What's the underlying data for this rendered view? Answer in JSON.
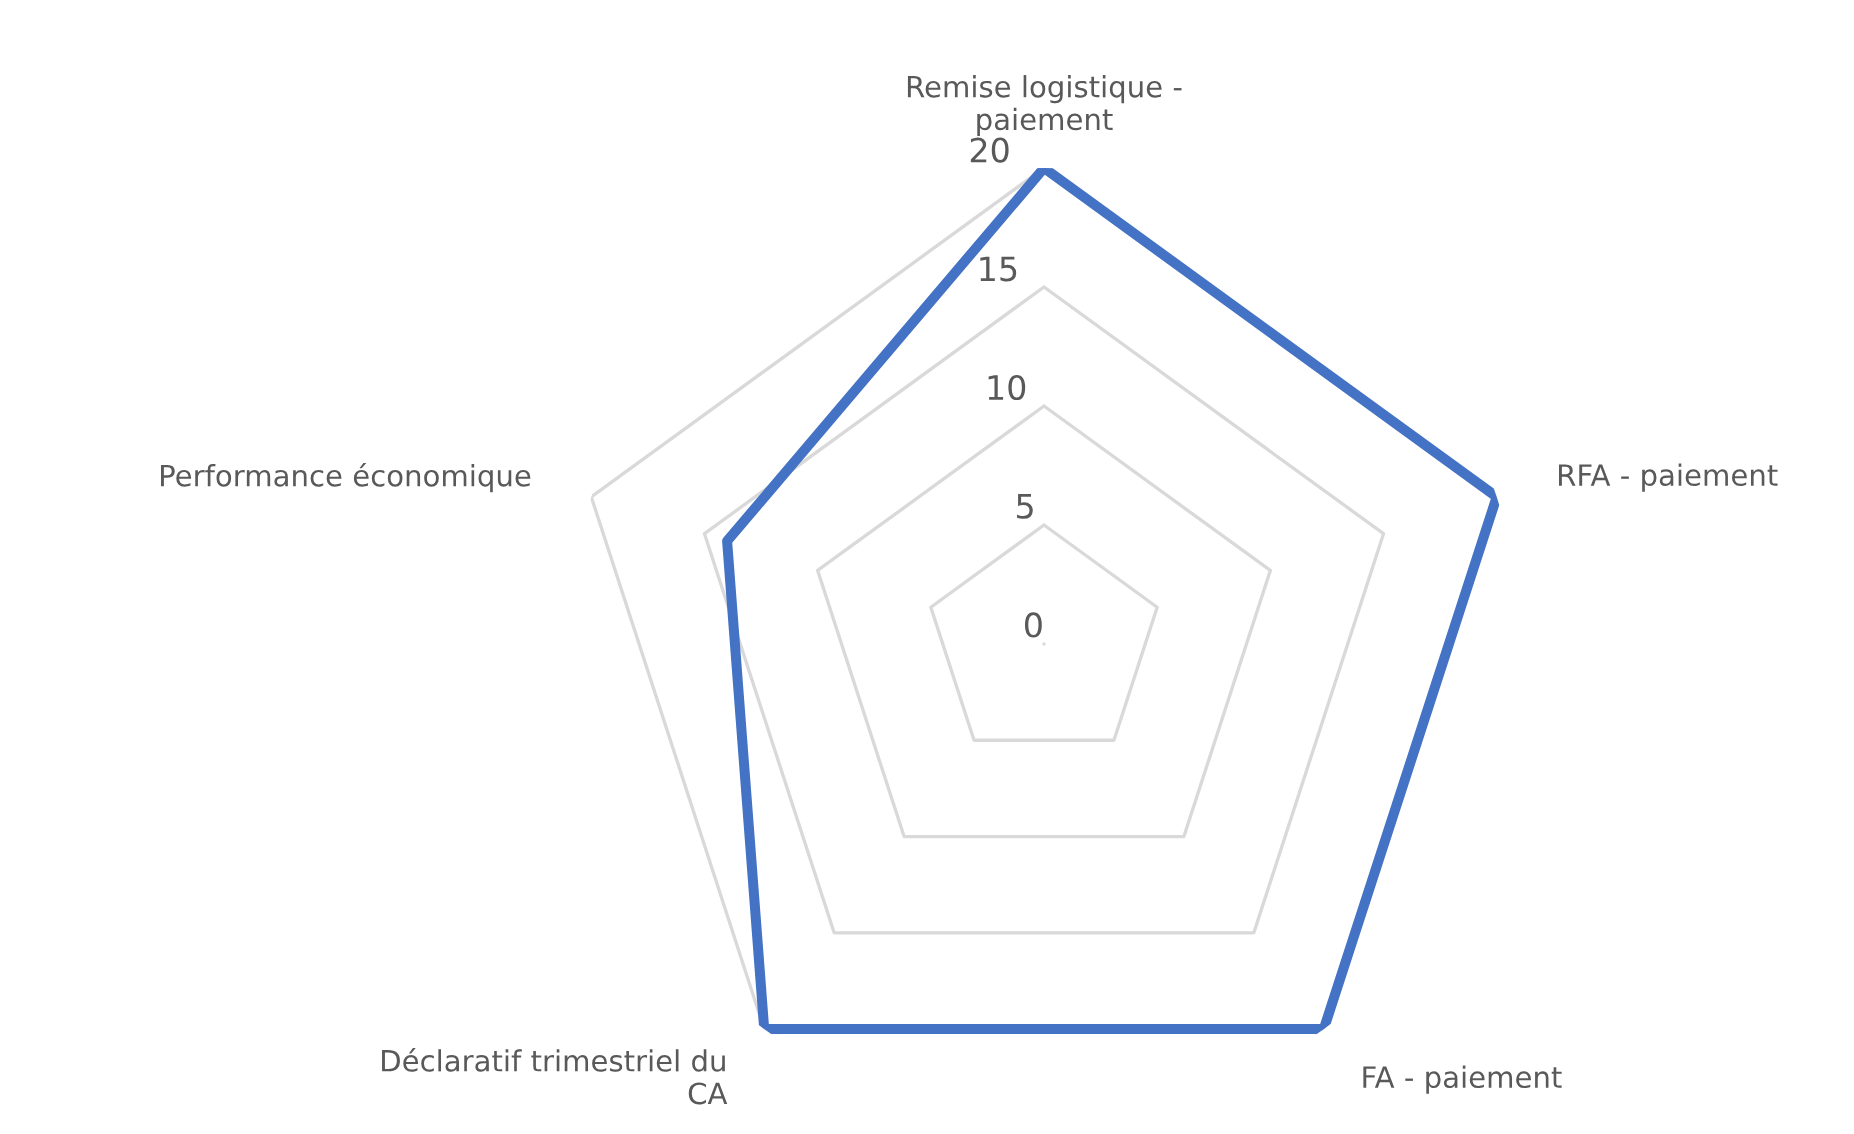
{
  "chart_data": {
    "type": "radar",
    "categories": [
      "Remise logistique -\npaiement",
      "RFA - paiement",
      "FA - paiement",
      "Déclaratif trimestriel du\nCA",
      "Performance économique"
    ],
    "series": [
      {
        "color": "#4472c4",
        "values": [
          20,
          20,
          20,
          20,
          14
        ]
      }
    ],
    "ylim": [
      0,
      20
    ],
    "yticks": [
      0,
      5,
      10,
      15,
      20
    ],
    "grid": true,
    "marker": "none",
    "line_style": "solid",
    "legend": false
  }
}
